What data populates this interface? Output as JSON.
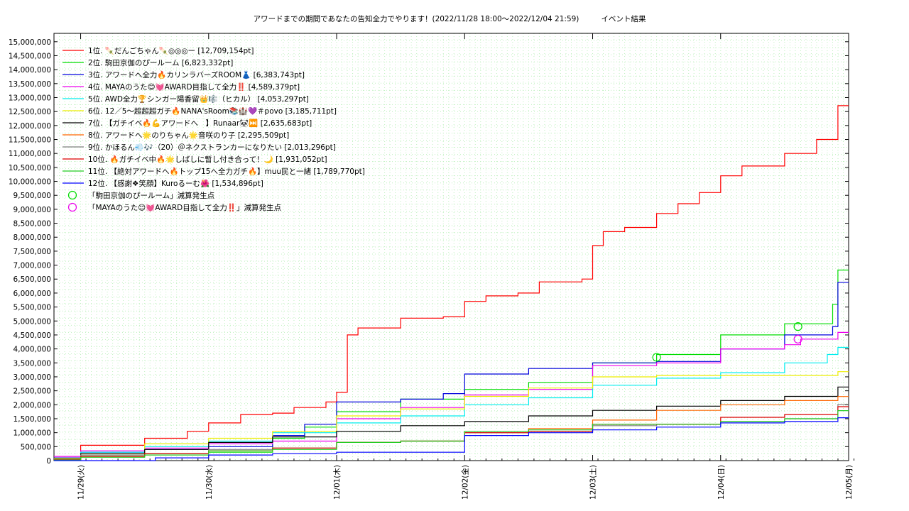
{
  "chart_data": {
    "type": "line",
    "title": "アワードまでの期間であなたの告知全力でやります！(2022/11/28 18:00〜2022/12/04 21:59)",
    "subtitle": "イベント結果",
    "xlabel": "",
    "ylabel": "",
    "ylim": [
      0,
      15300000
    ],
    "x_range": [
      "2022-11-28T19:00",
      "2022-12-05T00:00"
    ],
    "x_ticks": [
      {
        "label": "11/29(火)",
        "x": "2022-11-29T00:00"
      },
      {
        "label": "11/30(水)",
        "x": "2022-11-30T00:00"
      },
      {
        "label": "12/01(木)",
        "x": "2022-12-01T00:00"
      },
      {
        "label": "12/02(金)",
        "x": "2022-12-02T00:00"
      },
      {
        "label": "12/03(土)",
        "x": "2022-12-03T00:00"
      },
      {
        "label": "12/04(日)",
        "x": "2022-12-04T00:00"
      },
      {
        "label": "12/05(月)",
        "x": "2022-12-05T00:00"
      }
    ],
    "y_ticks": [
      0,
      500000,
      1000000,
      1500000,
      2000000,
      2500000,
      3000000,
      3500000,
      4000000,
      4500000,
      5000000,
      5500000,
      6000000,
      6500000,
      7000000,
      7500000,
      8000000,
      8500000,
      9000000,
      9500000,
      10000000,
      10500000,
      11000000,
      11500000,
      12000000,
      12500000,
      13000000,
      13500000,
      14000000,
      14500000,
      15000000
    ],
    "y_tick_labels": [
      "0",
      "500,000",
      "1,000,000",
      "1,500,000",
      "2,000,000",
      "2,500,000",
      "3,000,000",
      "3,500,000",
      "4,000,000",
      "4,500,000",
      "5,000,000",
      "5,500,000",
      "6,000,000",
      "6,500,000",
      "7,000,000",
      "7,500,000",
      "8,000,000",
      "8,500,000",
      "9,000,000",
      "9,500,000",
      "10,000,000",
      "10,500,000",
      "11,000,000",
      "11,500,000",
      "12,000,000",
      "12,500,000",
      "13,000,000",
      "13,500,000",
      "14,000,000",
      "14,500,000",
      "15,000,000"
    ],
    "grid": true,
    "legend_position": "top-left",
    "series": [
      {
        "name": "1位. 🍡だんごちゃん🍡◎◎◎ー [12,709,154pt]",
        "color": "#ff0000",
        "points": [
          [
            "2022-11-28T19:00",
            100000
          ],
          [
            "2022-11-29T00:00",
            550000
          ],
          [
            "2022-11-29T12:00",
            800000
          ],
          [
            "2022-11-29T20:00",
            1050000
          ],
          [
            "2022-11-30T00:00",
            1350000
          ],
          [
            "2022-11-30T06:00",
            1650000
          ],
          [
            "2022-11-30T12:00",
            1700000
          ],
          [
            "2022-11-30T16:00",
            1900000
          ],
          [
            "2022-11-30T22:00",
            2100000
          ],
          [
            "2022-12-01T00:00",
            2450000
          ],
          [
            "2022-12-01T02:00",
            4500000
          ],
          [
            "2022-12-01T04:00",
            4750000
          ],
          [
            "2022-12-01T12:00",
            5100000
          ],
          [
            "2022-12-01T20:00",
            5150000
          ],
          [
            "2022-12-02T00:00",
            5700000
          ],
          [
            "2022-12-02T04:00",
            5900000
          ],
          [
            "2022-12-02T10:00",
            6000000
          ],
          [
            "2022-12-02T14:00",
            6400000
          ],
          [
            "2022-12-02T22:00",
            6500000
          ],
          [
            "2022-12-03T00:00",
            7700000
          ],
          [
            "2022-12-03T02:00",
            8200000
          ],
          [
            "2022-12-03T06:00",
            8350000
          ],
          [
            "2022-12-03T12:00",
            8850000
          ],
          [
            "2022-12-03T16:00",
            9200000
          ],
          [
            "2022-12-03T20:00",
            9600000
          ],
          [
            "2022-12-04T00:00",
            10200000
          ],
          [
            "2022-12-04T04:00",
            10550000
          ],
          [
            "2022-12-04T12:00",
            11000000
          ],
          [
            "2022-12-04T18:00",
            11500000
          ],
          [
            "2022-12-04T21:59",
            12709154
          ],
          [
            "2022-12-05T00:00",
            12709154
          ]
        ]
      },
      {
        "name": "2位. 駒田京伽のぴールーム [6,823,332pt]",
        "color": "#00dd00",
        "points": [
          [
            "2022-11-28T19:00",
            50000
          ],
          [
            "2022-11-29T00:00",
            200000
          ],
          [
            "2022-11-29T12:00",
            250000
          ],
          [
            "2022-11-30T00:00",
            300000
          ],
          [
            "2022-11-30T12:00",
            800000
          ],
          [
            "2022-11-30T18:00",
            1200000
          ],
          [
            "2022-12-01T00:00",
            1750000
          ],
          [
            "2022-12-01T12:00",
            2200000
          ],
          [
            "2022-12-02T00:00",
            2550000
          ],
          [
            "2022-12-02T12:00",
            2800000
          ],
          [
            "2022-12-03T00:00",
            3500000
          ],
          [
            "2022-12-03T12:00",
            3800000
          ],
          [
            "2022-12-04T00:00",
            4500000
          ],
          [
            "2022-12-04T12:00",
            4900000
          ],
          [
            "2022-12-04T21:00",
            5600000
          ],
          [
            "2022-12-04T21:59",
            6823332
          ],
          [
            "2022-12-05T00:00",
            6823332
          ]
        ]
      },
      {
        "name": "3位. アワードへ全力🔥カリンラバーズROOM👗 [6,383,743pt]",
        "color": "#0000dd",
        "points": [
          [
            "2022-11-28T19:00",
            100000
          ],
          [
            "2022-11-29T00:00",
            300000
          ],
          [
            "2022-11-29T12:00",
            400000
          ],
          [
            "2022-11-30T00:00",
            500000
          ],
          [
            "2022-11-30T12:00",
            900000
          ],
          [
            "2022-11-30T18:00",
            1300000
          ],
          [
            "2022-12-01T00:00",
            2100000
          ],
          [
            "2022-12-01T12:00",
            2200000
          ],
          [
            "2022-12-01T20:00",
            2400000
          ],
          [
            "2022-12-02T00:00",
            3100000
          ],
          [
            "2022-12-02T12:00",
            3300000
          ],
          [
            "2022-12-03T00:00",
            3500000
          ],
          [
            "2022-12-03T12:00",
            3550000
          ],
          [
            "2022-12-04T00:00",
            4000000
          ],
          [
            "2022-12-04T12:00",
            4500000
          ],
          [
            "2022-12-04T21:00",
            4800000
          ],
          [
            "2022-12-04T21:59",
            6383743
          ],
          [
            "2022-12-05T00:00",
            6383743
          ]
        ]
      },
      {
        "name": "4位. MAYAのうた😊💓AWARD目指して全力‼️ [4,589,379pt]",
        "color": "#ee00ee",
        "points": [
          [
            "2022-11-28T19:00",
            150000
          ],
          [
            "2022-11-29T00:00",
            350000
          ],
          [
            "2022-11-29T12:00",
            450000
          ],
          [
            "2022-11-30T00:00",
            600000
          ],
          [
            "2022-11-30T12:00",
            700000
          ],
          [
            "2022-12-01T00:00",
            1500000
          ],
          [
            "2022-12-01T12:00",
            1900000
          ],
          [
            "2022-12-02T00:00",
            2350000
          ],
          [
            "2022-12-02T12:00",
            2550000
          ],
          [
            "2022-12-03T00:00",
            3400000
          ],
          [
            "2022-12-03T12:00",
            3500000
          ],
          [
            "2022-12-04T00:00",
            4000000
          ],
          [
            "2022-12-04T12:00",
            4150000
          ],
          [
            "2022-12-04T15:00",
            4350000
          ],
          [
            "2022-12-04T21:59",
            4589379
          ],
          [
            "2022-12-05T00:00",
            4589379
          ]
        ]
      },
      {
        "name": "5位. AWD全力🏆シンガー陽香留👑🎼（ヒカル） [4,053,297pt]",
        "color": "#00eeee",
        "points": [
          [
            "2022-11-28T19:00",
            50000
          ],
          [
            "2022-11-29T00:00",
            300000
          ],
          [
            "2022-11-29T12:00",
            500000
          ],
          [
            "2022-11-30T00:00",
            700000
          ],
          [
            "2022-11-30T12:00",
            1000000
          ],
          [
            "2022-12-01T00:00",
            1350000
          ],
          [
            "2022-12-01T12:00",
            1600000
          ],
          [
            "2022-12-02T00:00",
            2000000
          ],
          [
            "2022-12-02T12:00",
            2250000
          ],
          [
            "2022-12-03T00:00",
            2700000
          ],
          [
            "2022-12-03T12:00",
            2950000
          ],
          [
            "2022-12-04T00:00",
            3150000
          ],
          [
            "2022-12-04T12:00",
            3500000
          ],
          [
            "2022-12-04T20:00",
            3800000
          ],
          [
            "2022-12-04T21:59",
            4053297
          ],
          [
            "2022-12-05T00:00",
            4053297
          ]
        ]
      },
      {
        "name": "6位. 12／5〜超超超ガチ🔥NANA'sRoom📚🏰💜＃povo [3,185,711pt]",
        "color": "#eeee00",
        "points": [
          [
            "2022-11-28T19:00",
            80000
          ],
          [
            "2022-11-29T00:00",
            250000
          ],
          [
            "2022-11-29T12:00",
            600000
          ],
          [
            "2022-11-30T00:00",
            800000
          ],
          [
            "2022-11-30T12:00",
            1050000
          ],
          [
            "2022-12-01T00:00",
            1600000
          ],
          [
            "2022-12-01T12:00",
            1850000
          ],
          [
            "2022-12-02T00:00",
            2300000
          ],
          [
            "2022-12-02T12:00",
            2600000
          ],
          [
            "2022-12-03T00:00",
            3000000
          ],
          [
            "2022-12-03T12:00",
            3050000
          ],
          [
            "2022-12-04T00:00",
            3050000
          ],
          [
            "2022-12-04T12:00",
            3050000
          ],
          [
            "2022-12-04T21:59",
            3185711
          ],
          [
            "2022-12-05T00:00",
            3185711
          ]
        ]
      },
      {
        "name": "7位. 【ガチイベ🔥💪アワードへ　】Runaar🐼⏭️ [2,635,683pt]",
        "color": "#000000",
        "points": [
          [
            "2022-11-28T19:00",
            50000
          ],
          [
            "2022-11-29T00:00",
            250000
          ],
          [
            "2022-11-29T12:00",
            400000
          ],
          [
            "2022-11-30T00:00",
            650000
          ],
          [
            "2022-11-30T12:00",
            850000
          ],
          [
            "2022-12-01T00:00",
            1050000
          ],
          [
            "2022-12-01T12:00",
            1250000
          ],
          [
            "2022-12-02T00:00",
            1400000
          ],
          [
            "2022-12-02T12:00",
            1600000
          ],
          [
            "2022-12-03T00:00",
            1800000
          ],
          [
            "2022-12-03T12:00",
            1950000
          ],
          [
            "2022-12-04T00:00",
            2150000
          ],
          [
            "2022-12-04T12:00",
            2300000
          ],
          [
            "2022-12-04T21:59",
            2635683
          ],
          [
            "2022-12-05T00:00",
            2635683
          ]
        ]
      },
      {
        "name": "8位. アワードへ🌟のりちゃん🌟音咲のり子 [2,295,509pt]",
        "color": "#ff6600",
        "points": [
          [
            "2022-11-28T19:00",
            30000
          ],
          [
            "2022-11-29T00:00",
            150000
          ],
          [
            "2022-11-29T12:00",
            250000
          ],
          [
            "2022-11-30T00:00",
            350000
          ],
          [
            "2022-11-30T12:00",
            450000
          ],
          [
            "2022-12-01T00:00",
            650000
          ],
          [
            "2022-12-01T12:00",
            700000
          ],
          [
            "2022-12-02T00:00",
            1000000
          ],
          [
            "2022-12-02T12:00",
            1150000
          ],
          [
            "2022-12-03T00:00",
            1450000
          ],
          [
            "2022-12-03T12:00",
            1800000
          ],
          [
            "2022-12-04T00:00",
            2000000
          ],
          [
            "2022-12-04T12:00",
            2150000
          ],
          [
            "2022-12-04T21:59",
            2295509
          ],
          [
            "2022-12-05T00:00",
            2295509
          ]
        ]
      },
      {
        "name": "9位. かほるん💨🎶（20）＠ネクストランカーになりたい [2,013,296pt]",
        "color": "#808080",
        "points": [
          [
            "2022-11-28T19:00",
            40000
          ],
          [
            "2022-11-29T00:00",
            200000
          ],
          [
            "2022-11-29T12:00",
            250000
          ],
          [
            "2022-11-30T00:00",
            400000
          ],
          [
            "2022-11-30T12:00",
            450000
          ],
          [
            "2022-12-01T00:00",
            650000
          ],
          [
            "2022-12-01T12:00",
            700000
          ],
          [
            "2022-12-02T00:00",
            1000000
          ],
          [
            "2022-12-02T12:00",
            1050000
          ],
          [
            "2022-12-03T00:00",
            1250000
          ],
          [
            "2022-12-03T12:00",
            1300000
          ],
          [
            "2022-12-04T00:00",
            1400000
          ],
          [
            "2022-12-04T12:00",
            1500000
          ],
          [
            "2022-12-04T21:59",
            2013296
          ],
          [
            "2022-12-05T00:00",
            2013296
          ]
        ]
      },
      {
        "name": "10位. 🔥ガチイベ中🔥🌟しばしに暫し付き合って！🌙 [1,931,052pt]",
        "color": "#dd0000",
        "points": [
          [
            "2022-11-28T19:00",
            30000
          ],
          [
            "2022-11-29T00:00",
            150000
          ],
          [
            "2022-11-29T12:00",
            250000
          ],
          [
            "2022-11-30T00:00",
            350000
          ],
          [
            "2022-11-30T12:00",
            450000
          ],
          [
            "2022-12-01T00:00",
            650000
          ],
          [
            "2022-12-01T12:00",
            700000
          ],
          [
            "2022-12-02T00:00",
            1000000
          ],
          [
            "2022-12-02T12:00",
            1050000
          ],
          [
            "2022-12-03T00:00",
            1300000
          ],
          [
            "2022-12-03T12:00",
            1300000
          ],
          [
            "2022-12-04T00:00",
            1550000
          ],
          [
            "2022-12-04T12:00",
            1650000
          ],
          [
            "2022-12-04T21:59",
            1931052
          ],
          [
            "2022-12-05T00:00",
            1931052
          ]
        ]
      },
      {
        "name": "11位. 【絶対アワードへ🔥トップ15へ全力ガチ🔥】muu民と一緒 [1,789,770pt]",
        "color": "#22cc22",
        "points": [
          [
            "2022-11-28T19:00",
            20000
          ],
          [
            "2022-11-29T00:00",
            120000
          ],
          [
            "2022-11-29T12:00",
            200000
          ],
          [
            "2022-11-30T00:00",
            350000
          ],
          [
            "2022-11-30T12:00",
            400000
          ],
          [
            "2022-12-01T00:00",
            650000
          ],
          [
            "2022-12-01T12:00",
            700000
          ],
          [
            "2022-12-02T00:00",
            1050000
          ],
          [
            "2022-12-02T12:00",
            1100000
          ],
          [
            "2022-12-03T00:00",
            1300000
          ],
          [
            "2022-12-03T12:00",
            1300000
          ],
          [
            "2022-12-04T00:00",
            1400000
          ],
          [
            "2022-12-04T12:00",
            1500000
          ],
          [
            "2022-12-04T21:59",
            1789770
          ],
          [
            "2022-12-05T00:00",
            1789770
          ]
        ]
      },
      {
        "name": "12位. 【感謝❖笑顔】Kuroるーむ🌺 [1,534,896pt]",
        "color": "#0000ff",
        "points": [
          [
            "2022-11-28T19:00",
            0
          ],
          [
            "2022-11-29T12:00",
            0
          ],
          [
            "2022-11-29T14:00",
            100000
          ],
          [
            "2022-11-30T00:00",
            200000
          ],
          [
            "2022-11-30T12:00",
            250000
          ],
          [
            "2022-12-01T00:00",
            300000
          ],
          [
            "2022-12-01T12:00",
            300000
          ],
          [
            "2022-12-01T20:00",
            300000
          ],
          [
            "2022-12-02T00:00",
            900000
          ],
          [
            "2022-12-02T12:00",
            1000000
          ],
          [
            "2022-12-03T00:00",
            1100000
          ],
          [
            "2022-12-03T12:00",
            1200000
          ],
          [
            "2022-12-04T00:00",
            1350000
          ],
          [
            "2022-12-04T12:00",
            1400000
          ],
          [
            "2022-12-04T20:00",
            1400000
          ],
          [
            "2022-12-04T21:59",
            1534896
          ],
          [
            "2022-12-05T00:00",
            1534896
          ]
        ]
      }
    ],
    "markers": [
      {
        "name": "「駒田京伽のぴールーム」減算発生点",
        "color": "#00dd00",
        "points": [
          [
            "2022-12-03T12:00",
            3700000
          ],
          [
            "2022-12-04T14:30",
            4800000
          ]
        ]
      },
      {
        "name": "「MAYAのうた😊💓AWARD目指して全力‼️」減算発生点",
        "color": "#ee00ee",
        "points": [
          [
            "2022-12-04T14:30",
            4350000
          ]
        ]
      }
    ]
  }
}
